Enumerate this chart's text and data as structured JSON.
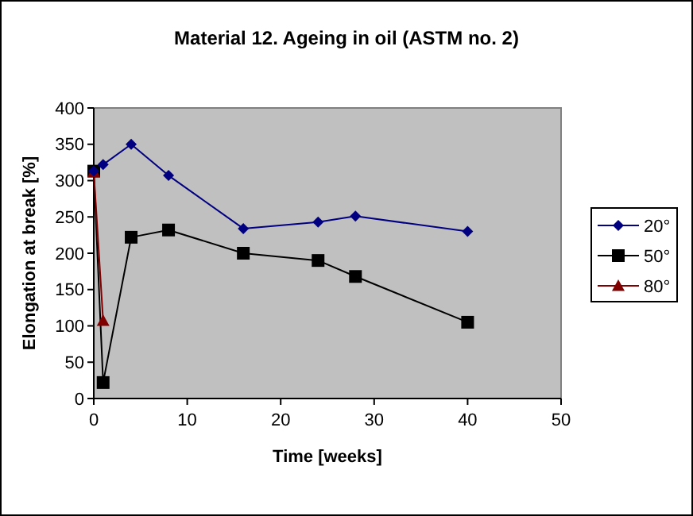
{
  "chart_data": {
    "type": "line",
    "title": "Material 12. Ageing in oil (ASTM no. 2)",
    "xlabel": "Time [weeks]",
    "ylabel": "Elongation at break [%]",
    "xlim": [
      0,
      50
    ],
    "xticks": [
      0,
      10,
      20,
      30,
      40,
      50
    ],
    "ylim": [
      0,
      400
    ],
    "yticks": [
      0,
      50,
      100,
      150,
      200,
      250,
      300,
      350,
      400
    ],
    "grid": false,
    "legend": "right",
    "series": [
      {
        "name": "20°",
        "color": "#000080",
        "marker": "diamond",
        "x": [
          0,
          1,
          4,
          8,
          16,
          24,
          28,
          40
        ],
        "values": [
          313,
          322,
          350,
          307,
          234,
          243,
          251,
          230
        ]
      },
      {
        "name": "50°",
        "color": "#000000",
        "marker": "square",
        "x": [
          0,
          1,
          4,
          8,
          16,
          24,
          28,
          40
        ],
        "values": [
          313,
          22,
          222,
          232,
          200,
          190,
          168,
          105
        ]
      },
      {
        "name": "80°",
        "color": "#800000",
        "marker": "triangle",
        "x": [
          0,
          1
        ],
        "values": [
          312,
          107
        ]
      }
    ]
  }
}
